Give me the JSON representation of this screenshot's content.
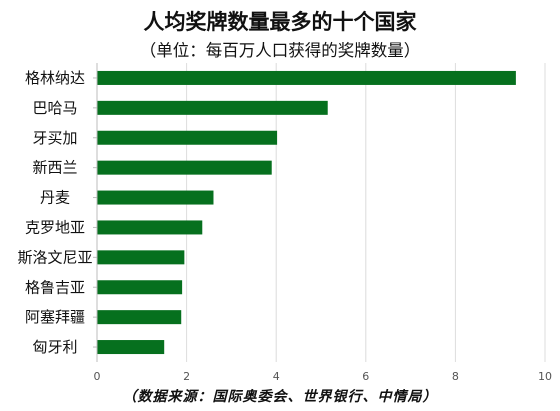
{
  "chart_data": {
    "type": "bar",
    "orientation": "horizontal",
    "title": "人均奖牌数量最多的十个国家",
    "subtitle": "（单位：每百万人口获得的奖牌数量）",
    "categories": [
      "格林纳达",
      "巴哈马",
      "牙买加",
      "新西兰",
      "丹麦",
      "克罗地亚",
      "斯洛文尼亚",
      "格鲁吉亚",
      "阿塞拜疆",
      "匈牙利"
    ],
    "values": [
      9.35,
      5.15,
      4.02,
      3.9,
      2.6,
      2.35,
      1.95,
      1.9,
      1.88,
      1.5
    ],
    "xlim": [
      0,
      10
    ],
    "xticks": [
      "0",
      "2",
      "4",
      "6",
      "8",
      "10"
    ],
    "grid": true,
    "bar_color": "#06701e",
    "source": "（数据来源：国际奥委会、世界银行、中情局）"
  }
}
